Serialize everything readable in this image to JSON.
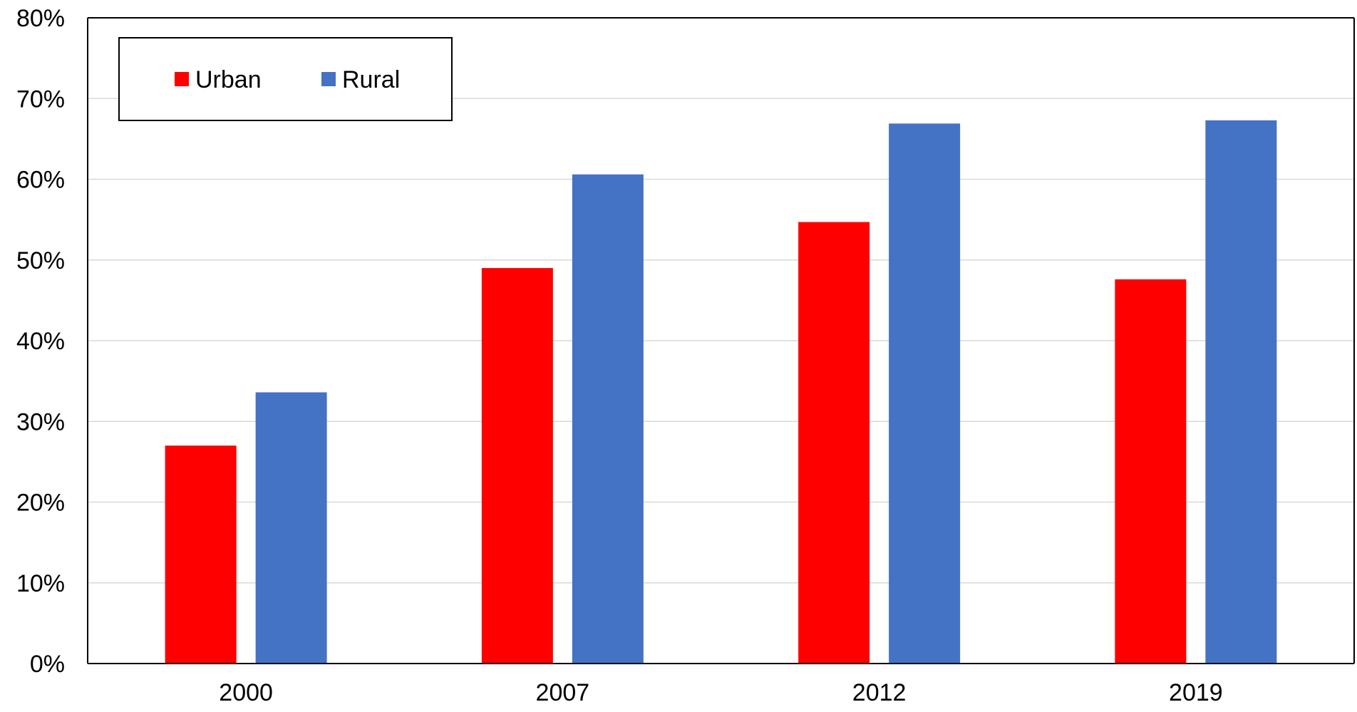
{
  "chart_data": {
    "type": "bar",
    "title": "",
    "xlabel": "",
    "ylabel": "",
    "categories": [
      "2000",
      "2007",
      "2012",
      "2019"
    ],
    "series": [
      {
        "name": "Urban",
        "color": "#ff0000",
        "values": [
          27,
          49,
          54.7,
          47.6
        ]
      },
      {
        "name": "Rural",
        "color": "#4472c4",
        "values": [
          33.6,
          60.6,
          66.9,
          67.3
        ]
      }
    ],
    "ylim": [
      0,
      80
    ],
    "yticks": [
      "0%",
      "10%",
      "20%",
      "30%",
      "40%",
      "50%",
      "60%",
      "70%",
      "80%"
    ],
    "grid": true,
    "legend_position": "top-left"
  }
}
